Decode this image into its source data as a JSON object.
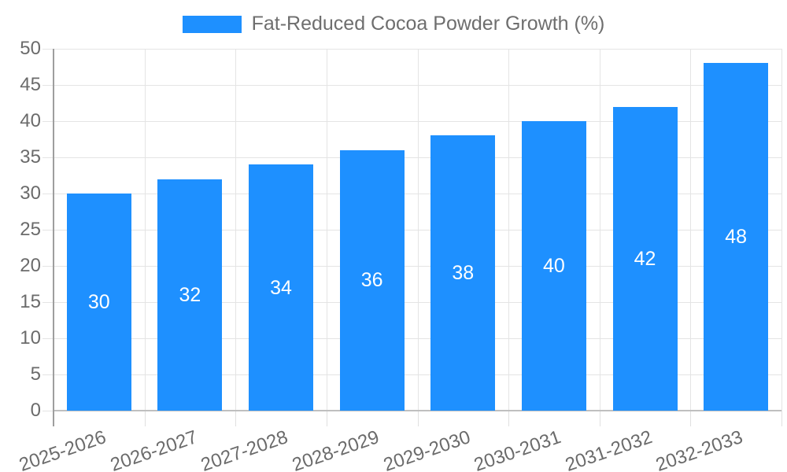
{
  "legend": {
    "label": "Fat-Reduced Cocoa Powder Growth (%)"
  },
  "chart_data": {
    "type": "bar",
    "title": "Fat-Reduced Cocoa Powder Growth (%)",
    "series_name": "Fat-Reduced Cocoa Powder Growth (%)",
    "categories": [
      "2025-2026",
      "2026-2027",
      "2027-2028",
      "2028-2029",
      "2029-2030",
      "2030-2031",
      "2031-2032",
      "2032-2033"
    ],
    "values": [
      30,
      32,
      34,
      36,
      38,
      40,
      42,
      48
    ],
    "value_labels": [
      "30",
      "32",
      "34",
      "36",
      "38",
      "40",
      "42",
      "48"
    ],
    "ylim": [
      0,
      50
    ],
    "ytick_step": 5,
    "ytick_labels": [
      "0",
      "5",
      "10",
      "15",
      "20",
      "25",
      "30",
      "35",
      "40",
      "45",
      "50"
    ],
    "grid": true,
    "legend_position": "top-center",
    "x_label_rotation_deg": -19,
    "colors": {
      "bar": "#1e90ff",
      "value_label": "#ffffff",
      "axis_label": "#6b6b6b",
      "title": "#6e6e6e",
      "gridline": "#e4e4e4",
      "tick": "#e0e0e0",
      "axis_line": "#9e9e9e",
      "baseline": "#bfbfbf",
      "background": "#ffffff"
    }
  }
}
